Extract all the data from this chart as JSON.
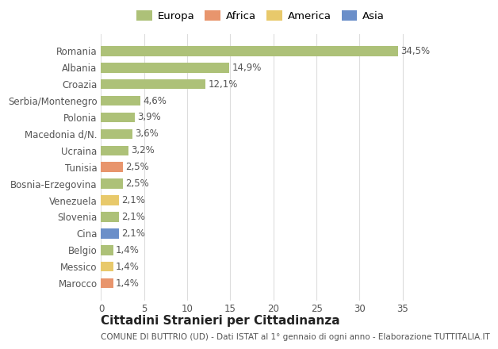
{
  "countries": [
    "Romania",
    "Albania",
    "Croazia",
    "Serbia/Montenegro",
    "Polonia",
    "Macedonia d/N.",
    "Ucraina",
    "Tunisia",
    "Bosnia-Erzegovina",
    "Venezuela",
    "Slovenia",
    "Cina",
    "Belgio",
    "Messico",
    "Marocco"
  ],
  "values": [
    34.5,
    14.9,
    12.1,
    4.6,
    3.9,
    3.6,
    3.2,
    2.5,
    2.5,
    2.1,
    2.1,
    2.1,
    1.4,
    1.4,
    1.4
  ],
  "labels": [
    "34,5%",
    "14,9%",
    "12,1%",
    "4,6%",
    "3,9%",
    "3,6%",
    "3,2%",
    "2,5%",
    "2,5%",
    "2,1%",
    "2,1%",
    "2,1%",
    "1,4%",
    "1,4%",
    "1,4%"
  ],
  "continents": [
    "Europa",
    "Europa",
    "Europa",
    "Europa",
    "Europa",
    "Europa",
    "Europa",
    "Africa",
    "Europa",
    "America",
    "Europa",
    "Asia",
    "Europa",
    "America",
    "Africa"
  ],
  "colors": {
    "Europa": "#adc178",
    "Africa": "#e8956d",
    "America": "#e8c96b",
    "Asia": "#6b8fc9"
  },
  "title": "Cittadini Stranieri per Cittadinanza",
  "subtitle": "COMUNE DI BUTTRIO (UD) - Dati ISTAT al 1° gennaio di ogni anno - Elaborazione TUTTITALIA.IT",
  "xlim": [
    0,
    37
  ],
  "xticks": [
    0,
    5,
    10,
    15,
    20,
    25,
    30,
    35
  ],
  "bg_color": "#ffffff",
  "grid_color": "#dddddd",
  "bar_height": 0.6,
  "title_fontsize": 11,
  "subtitle_fontsize": 7.5,
  "tick_fontsize": 8.5,
  "label_fontsize": 8.5,
  "legend_fontsize": 9.5
}
